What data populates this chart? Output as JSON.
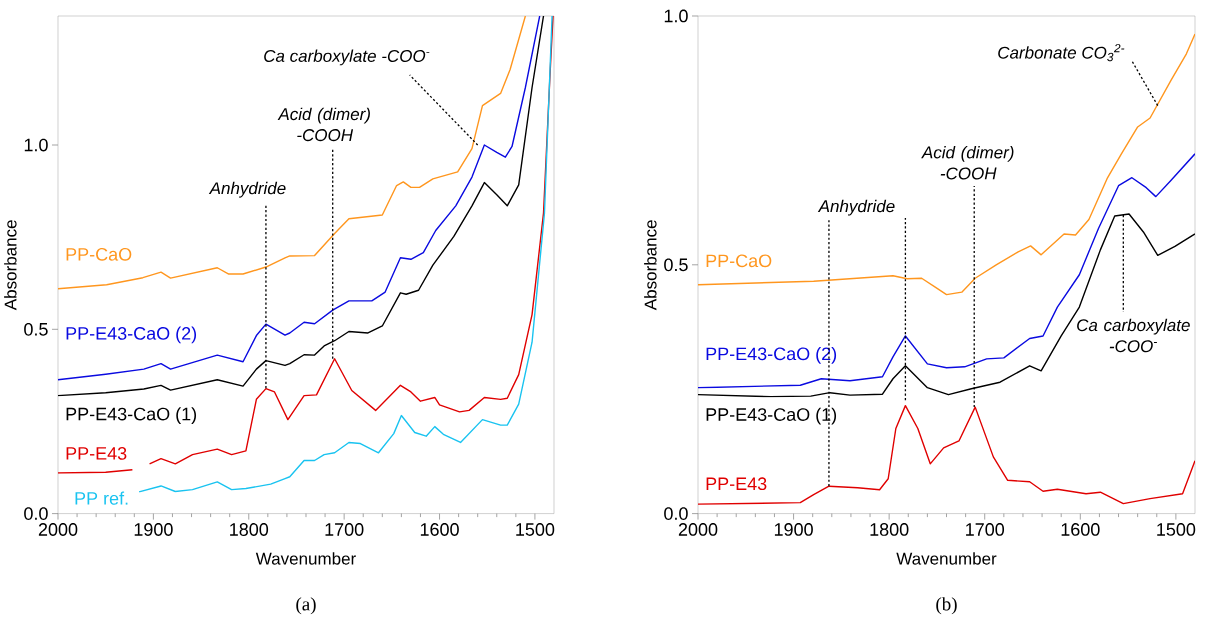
{
  "chart_data": [
    {
      "type": "line",
      "xlabel": "Wavenumber",
      "ylabel": "Absorbance",
      "marker": "none",
      "xlim": [
        2000,
        1480
      ],
      "ylim": [
        0,
        1.35
      ],
      "xticks": [
        2000,
        {
          "value": 1980,
          "label": null
        },
        {
          "value": 1960,
          "label": null
        },
        {
          "value": 1940,
          "label": null
        },
        {
          "value": 1920,
          "label": null
        },
        1900,
        {
          "value": 1880,
          "label": null
        },
        {
          "value": 1860,
          "label": null
        },
        {
          "value": 1840,
          "label": null
        },
        {
          "value": 1820,
          "label": null
        },
        1800,
        {
          "value": 1780,
          "label": null
        },
        {
          "value": 1760,
          "label": null
        },
        {
          "value": 1740,
          "label": null
        },
        {
          "value": 1720,
          "label": null
        },
        1700,
        {
          "value": 1680,
          "label": null
        },
        {
          "value": 1660,
          "label": null
        },
        {
          "value": 1640,
          "label": null
        },
        {
          "value": 1620,
          "label": null
        },
        1600,
        {
          "value": 1580,
          "label": null
        },
        {
          "value": 1560,
          "label": null
        },
        {
          "value": 1540,
          "label": null
        },
        {
          "value": 1520,
          "label": null
        },
        1500
      ],
      "yticks": [
        {
          "value": 0,
          "label": "0.0"
        },
        {
          "value": 0.5,
          "label": "0.5"
        },
        {
          "value": 1,
          "label": "1.0"
        }
      ],
      "series": [
        {
          "name": "PP-CaO",
          "color": "#ff961e",
          "x": [
            2000,
            1949,
            1911,
            1892,
            1882,
            1833,
            1821,
            1806,
            1782,
            1762,
            1757,
            1731,
            1710,
            1695,
            1660,
            1645,
            1638,
            1630,
            1621,
            1607,
            1581,
            1566,
            1555,
            1536,
            1526,
            1510
          ],
          "values": [
            0.61,
            0.621,
            0.64,
            0.655,
            0.639,
            0.667,
            0.65,
            0.65,
            0.669,
            0.694,
            0.699,
            0.7,
            0.76,
            0.8,
            0.81,
            0.89,
            0.9,
            0.885,
            0.885,
            0.908,
            0.927,
            0.99,
            1.107,
            1.14,
            1.205,
            1.35
          ]
        },
        {
          "name": "PP-E43-CaO (2)",
          "color": "#0a0ae0",
          "x": [
            2000,
            1950,
            1910,
            1892,
            1882,
            1833,
            1806,
            1792,
            1782,
            1762,
            1757,
            1742,
            1731,
            1712,
            1695,
            1671,
            1657,
            1641,
            1630,
            1617,
            1604,
            1583,
            1566,
            1553,
            1540,
            1531,
            1524,
            1510,
            1495
          ],
          "values": [
            0.363,
            0.378,
            0.392,
            0.407,
            0.392,
            0.43,
            0.412,
            0.483,
            0.514,
            0.484,
            0.49,
            0.519,
            0.515,
            0.552,
            0.577,
            0.577,
            0.601,
            0.694,
            0.69,
            0.708,
            0.768,
            0.835,
            0.913,
            1.0,
            0.98,
            0.967,
            0.996,
            1.156,
            1.35
          ]
        },
        {
          "name": "PP-E43-CaO (1)",
          "color": "#000000",
          "x": [
            2000,
            1950,
            1910,
            1892,
            1882,
            1833,
            1806,
            1792,
            1782,
            1762,
            1757,
            1742,
            1731,
            1721,
            1710,
            1695,
            1675,
            1660,
            1641,
            1635,
            1622,
            1607,
            1585,
            1566,
            1553,
            1540,
            1529,
            1517,
            1503,
            1491
          ],
          "values": [
            0.32,
            0.328,
            0.338,
            0.348,
            0.335,
            0.363,
            0.346,
            0.392,
            0.415,
            0.402,
            0.407,
            0.431,
            0.43,
            0.455,
            0.469,
            0.494,
            0.49,
            0.509,
            0.599,
            0.595,
            0.606,
            0.674,
            0.752,
            0.835,
            0.898,
            0.865,
            0.835,
            0.892,
            1.156,
            1.35
          ]
        },
        {
          "name": "PP-E43",
          "color": "#e00000",
          "x": [
            2000,
            1950,
            1922,
            1915,
            1904,
            1892,
            1877,
            1859,
            1833,
            1818,
            1803,
            1792,
            1782,
            1773,
            1759,
            1742,
            1729,
            1710,
            1692,
            1667,
            1641,
            1630,
            1620,
            1605,
            1600,
            1579,
            1569,
            1553,
            1536,
            1529,
            1517,
            1503,
            1491,
            1484,
            1481
          ],
          "values": [
            0.11,
            0.112,
            0.119,
            null,
            0.135,
            0.149,
            0.135,
            0.16,
            0.175,
            0.16,
            0.17,
            0.31,
            0.339,
            0.33,
            0.255,
            0.32,
            0.322,
            0.42,
            0.334,
            0.28,
            0.348,
            0.33,
            0.305,
            0.315,
            0.295,
            0.276,
            0.28,
            0.315,
            0.31,
            0.313,
            0.377,
            0.54,
            0.815,
            1.2,
            1.35
          ]
        },
        {
          "name": "PP ref.",
          "color": "#19c3f0",
          "x": [
            1915,
            1892,
            1877,
            1859,
            1833,
            1818,
            1803,
            1777,
            1762,
            1757,
            1742,
            1731,
            1721,
            1710,
            1695,
            1683,
            1664,
            1648,
            1640,
            1626,
            1614,
            1605,
            1596,
            1578,
            1555,
            1536,
            1529,
            1517,
            1503,
            1490,
            1482
          ],
          "values": [
            0.059,
            0.075,
            0.06,
            0.065,
            0.086,
            0.065,
            0.068,
            0.08,
            0.095,
            0.1,
            0.144,
            0.144,
            0.16,
            0.165,
            0.193,
            0.19,
            0.165,
            0.217,
            0.266,
            0.22,
            0.21,
            0.236,
            0.215,
            0.193,
            0.255,
            0.24,
            0.24,
            0.297,
            0.465,
            0.815,
            1.35
          ]
        }
      ],
      "annotations": [
        {
          "text": "Ca carboxylate -COO$^{-}$",
          "x": 1560,
          "y": 1.0
        },
        {
          "text": "Acid (dimer) -COOH",
          "x": 1712,
          "y": 0.42
        },
        {
          "text": "Anhydride",
          "x": 1782,
          "y": 0.34
        },
        "(a)"
      ]
    },
    {
      "type": "line",
      "xlabel": "Wavenumber",
      "ylabel": "Absorbance",
      "marker": "none",
      "xlim": [
        2000,
        1480
      ],
      "ylim": [
        0,
        1
      ],
      "xticks": [
        2000,
        {
          "value": 1980,
          "label": null
        },
        {
          "value": 1960,
          "label": null
        },
        {
          "value": 1940,
          "label": null
        },
        {
          "value": 1920,
          "label": null
        },
        1900,
        {
          "value": 1880,
          "label": null
        },
        {
          "value": 1860,
          "label": null
        },
        {
          "value": 1840,
          "label": null
        },
        {
          "value": 1820,
          "label": null
        },
        1800,
        {
          "value": 1780,
          "label": null
        },
        {
          "value": 1760,
          "label": null
        },
        {
          "value": 1740,
          "label": null
        },
        {
          "value": 1720,
          "label": null
        },
        1700,
        {
          "value": 1680,
          "label": null
        },
        {
          "value": 1660,
          "label": null
        },
        {
          "value": 1640,
          "label": null
        },
        {
          "value": 1620,
          "label": null
        },
        1600,
        {
          "value": 1580,
          "label": null
        },
        {
          "value": 1560,
          "label": null
        },
        {
          "value": 1540,
          "label": null
        },
        {
          "value": 1520,
          "label": null
        },
        1500
      ],
      "yticks": [
        {
          "value": 0,
          "label": "0.0"
        },
        {
          "value": 0.5,
          "label": "0.5"
        },
        {
          "value": 1,
          "label": "1.0"
        }
      ],
      "series": [
        {
          "name": "PP-CaO",
          "color": "#ff961e",
          "x": [
            2000,
            1879,
            1796,
            1781,
            1766,
            1751,
            1740,
            1724,
            1710,
            1688,
            1665,
            1652,
            1641,
            1617,
            1605,
            1591,
            1572,
            1557,
            1540,
            1527,
            1505,
            1489,
            1480
          ],
          "values": [
            0.46,
            0.467,
            0.478,
            0.472,
            0.473,
            0.454,
            0.44,
            0.445,
            0.473,
            0.5,
            0.526,
            0.538,
            0.52,
            0.562,
            0.56,
            0.591,
            0.673,
            0.723,
            0.777,
            0.795,
            0.871,
            0.924,
            0.964
          ]
        },
        {
          "name": "PP-E43-CaO (2)",
          "color": "#0a0ae0",
          "x": [
            2000,
            1893,
            1871,
            1841,
            1807,
            1796,
            1783,
            1760,
            1740,
            1721,
            1698,
            1680,
            1653,
            1639,
            1624,
            1601,
            1581,
            1560,
            1546,
            1531,
            1521,
            1505,
            1480
          ],
          "values": [
            0.253,
            0.258,
            0.271,
            0.267,
            0.275,
            0.315,
            0.357,
            0.301,
            0.293,
            0.295,
            0.311,
            0.313,
            0.352,
            0.357,
            0.415,
            0.48,
            0.573,
            0.659,
            0.675,
            0.655,
            0.637,
            0.67,
            0.723
          ]
        },
        {
          "name": "PP-E43-CaO (1)",
          "color": "#000000",
          "x": [
            2000,
            1924,
            1882,
            1862,
            1841,
            1807,
            1796,
            1783,
            1760,
            1738,
            1714,
            1684,
            1653,
            1641,
            1620,
            1601,
            1579,
            1564,
            1549,
            1534,
            1519,
            1501,
            1480
          ],
          "values": [
            0.239,
            0.235,
            0.236,
            0.243,
            0.238,
            0.24,
            0.271,
            0.297,
            0.253,
            0.239,
            0.251,
            0.264,
            0.297,
            0.287,
            0.357,
            0.415,
            0.53,
            0.598,
            0.602,
            0.566,
            0.519,
            0.537,
            0.562
          ]
        },
        {
          "name": "PP-E43",
          "color": "#e00000",
          "x": [
            2000,
            1893,
            1879,
            1863,
            1833,
            1810,
            1801,
            1793,
            1783,
            1770,
            1757,
            1743,
            1727,
            1710,
            1691,
            1676,
            1653,
            1639,
            1624,
            1594,
            1579,
            1555,
            1527,
            1493,
            1480
          ],
          "values": [
            0.019,
            0.022,
            0.038,
            0.055,
            0.052,
            0.048,
            0.07,
            0.171,
            0.217,
            0.171,
            0.1,
            0.132,
            0.146,
            0.214,
            0.114,
            0.067,
            0.064,
            0.045,
            0.049,
            0.04,
            0.043,
            0.02,
            0.03,
            0.04,
            0.106
          ]
        }
      ],
      "ref_lines": [
        {
          "axis": "x",
          "value": 1783,
          "line_style": "dotted"
        }
      ],
      "annotations": [
        {
          "text": "Carbonate CO$_{3}$$^{2-}$",
          "x": 1519,
          "y": 0.82
        },
        {
          "text": "Acid (dimer) -COOH",
          "x": 1711,
          "y": 0.214
        },
        {
          "text": "Anhydride",
          "x": 1863,
          "y": 0.055
        },
        {
          "text": "Ca carboxylate -COO$^{-}$",
          "x": 1555,
          "y": 0.6
        },
        "(b)"
      ]
    }
  ]
}
